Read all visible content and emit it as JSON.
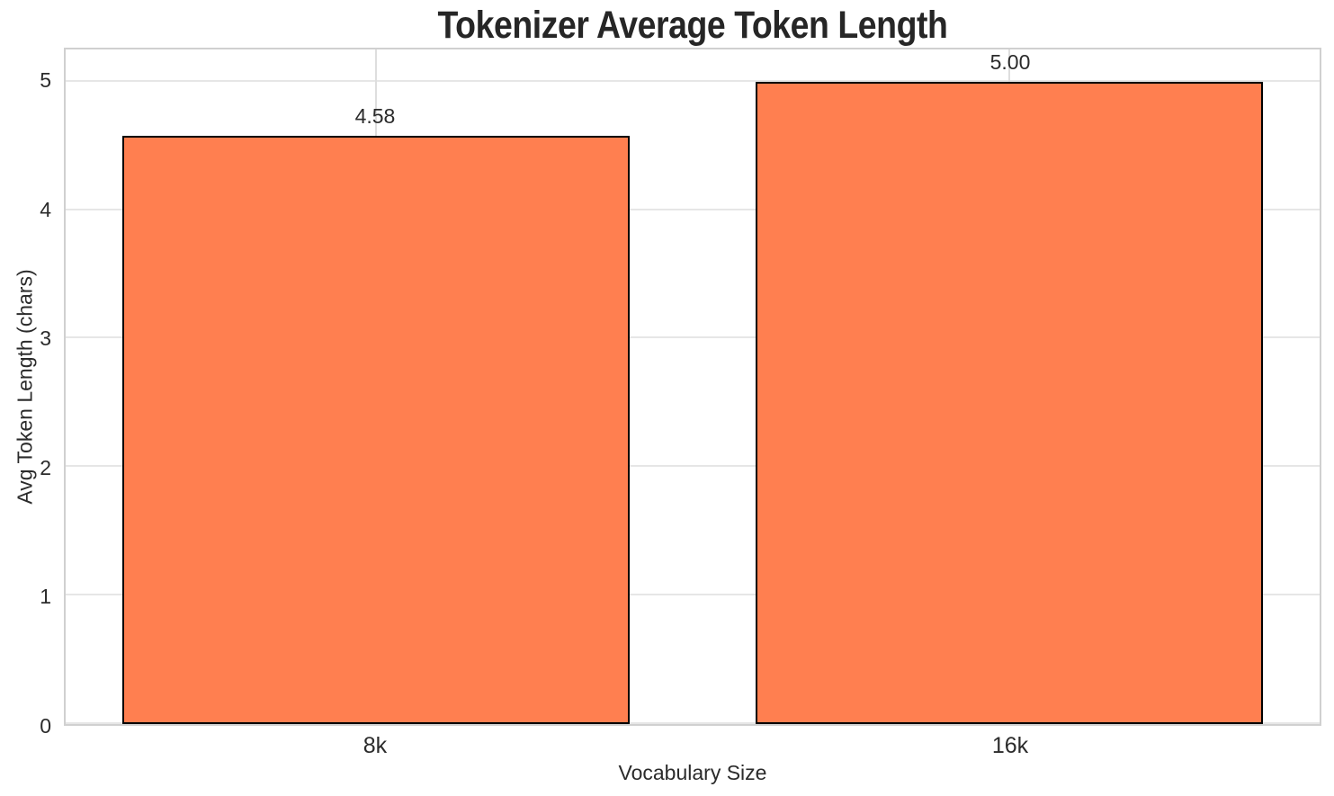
{
  "chart_data": {
    "type": "bar",
    "title": "Tokenizer Average Token Length",
    "xlabel": "Vocabulary Size",
    "ylabel": "Avg Token Length (chars)",
    "categories": [
      "8k",
      "16k"
    ],
    "values": [
      4.58,
      5.0
    ],
    "value_labels": [
      "4.58",
      "5.00"
    ],
    "yticks": [
      "0",
      "1",
      "2",
      "3",
      "4",
      "5"
    ],
    "ylim": [
      0,
      5.25
    ],
    "grid": true,
    "legend_position": "none",
    "colors": {
      "bar_fill": "#FF7F50",
      "bar_edge": "#000000",
      "grid_h": "#e6e6e6",
      "grid_v": "#dedede",
      "spine": "#d0d0d0",
      "text": "#2b2b2b",
      "title_text": "#262626",
      "background": "#ffffff"
    }
  }
}
